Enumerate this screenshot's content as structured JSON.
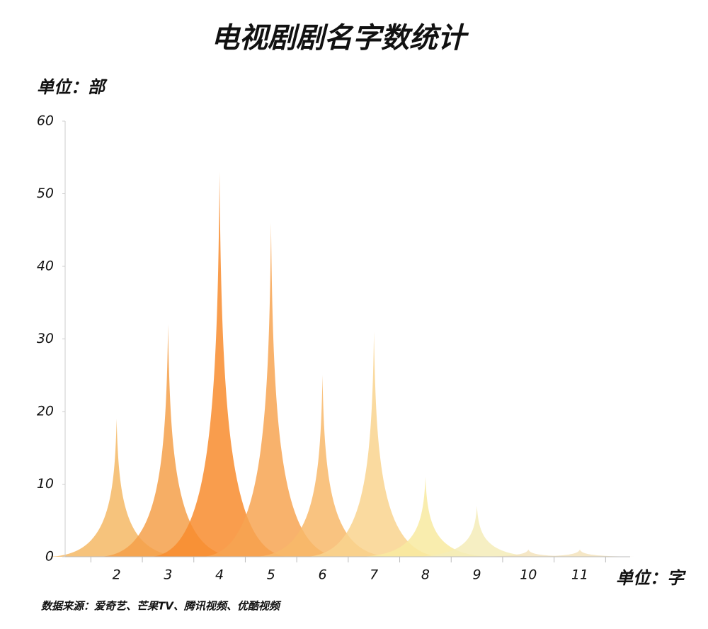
{
  "chart_data": {
    "type": "spike",
    "title": "电视剧剧名字数统计",
    "y_label": "单位：部",
    "x_label": "单位：字",
    "source": "数据来源：爱奇艺、芒果TV、腾讯视频、优酷视频",
    "categories": [
      "2",
      "3",
      "4",
      "5",
      "6",
      "7",
      "8",
      "9",
      "10",
      "11"
    ],
    "values": [
      19,
      32,
      53,
      46,
      25,
      31,
      11,
      7,
      1,
      1
    ],
    "colors": [
      "#f5b865",
      "#f5a04a",
      "#f88c2e",
      "#f7a452",
      "#f8b86a",
      "#f9d48e",
      "#f8eaa0",
      "#f5ecb8",
      "#f3e3bc",
      "#f3e3bc"
    ],
    "ylim": [
      0,
      60
    ],
    "yticks": [
      0,
      10,
      20,
      30,
      40,
      50,
      60
    ]
  }
}
